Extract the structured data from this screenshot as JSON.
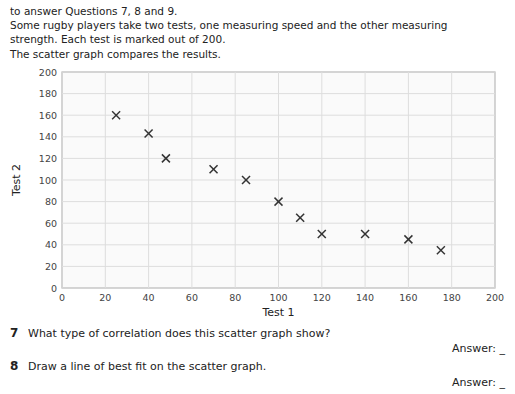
{
  "chart_data": {
    "type": "scatter",
    "annotations": [
      "to answer Questions 7, 8 and 9.",
      "Some rugby players take two tests, one measuring speed and the other measuring",
      "strength. Each test is marked out of 200.",
      "The scatter graph compares the results.",
      "7",
      "What type of correlation does this scatter graph show?",
      "Answer: _",
      "8",
      "Draw a line of best fit on the scatter graph.",
      "Answer: _"
    ],
    "x_label": "Test 1",
    "y_label": "Test 2",
    "x": [
      25,
      40,
      48,
      70,
      85,
      100,
      110,
      120,
      140,
      160,
      175
    ],
    "values": [
      160,
      143,
      120,
      110,
      100,
      80,
      65,
      50,
      50,
      45,
      35
    ],
    "xlim": [
      0,
      200
    ],
    "ylim": [
      0,
      200
    ],
    "xticks": [
      0,
      20,
      40,
      60,
      80,
      100,
      120,
      140,
      160,
      180,
      200
    ],
    "yticks": [
      0,
      20,
      40,
      60,
      80,
      100,
      120,
      140,
      160,
      180,
      200
    ],
    "marker": "x",
    "color": "#333333",
    "grid": true
  }
}
